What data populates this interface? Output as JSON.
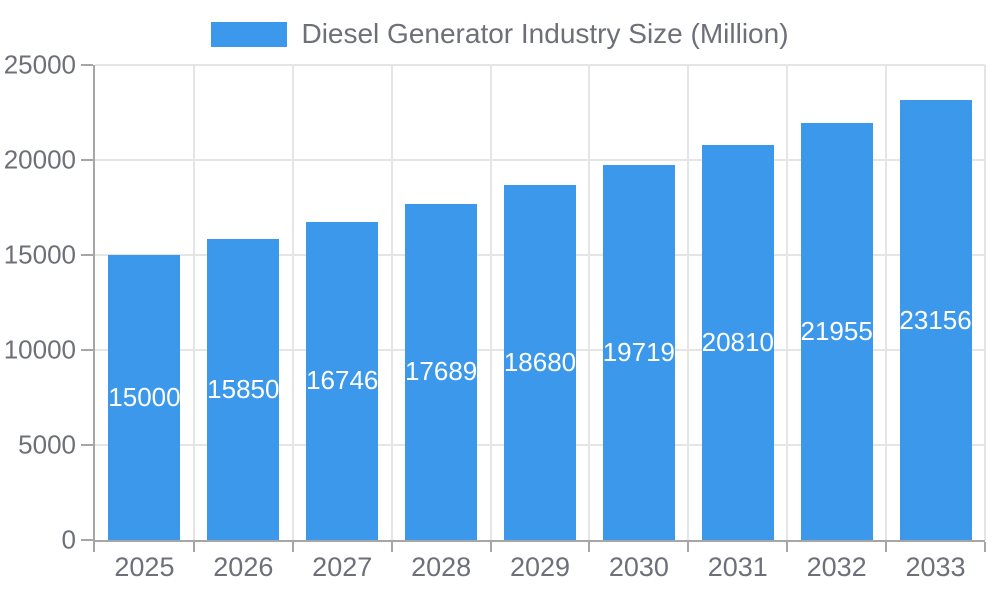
{
  "chart_data": {
    "type": "bar",
    "series_name": "Diesel Generator Industry Size (Million)",
    "categories": [
      "2025",
      "2026",
      "2027",
      "2028",
      "2029",
      "2030",
      "2031",
      "2032",
      "2033"
    ],
    "values": [
      15000,
      15850,
      16746,
      17689,
      18680,
      19719,
      20810,
      21955,
      23156
    ],
    "title": "",
    "xlabel": "",
    "ylabel": "",
    "ylim": [
      0,
      25000
    ],
    "yticks": [
      0,
      5000,
      10000,
      15000,
      20000,
      25000
    ],
    "grid": true,
    "legend_position": "top-center",
    "value_label_position": "inside-center"
  },
  "colors": {
    "bar": "#3b98eb",
    "gridline": "#e5e5e5",
    "axis": "#a6a6a6",
    "axis_text": "#6e7079",
    "value_text": "#ffffff",
    "background": "#ffffff"
  }
}
